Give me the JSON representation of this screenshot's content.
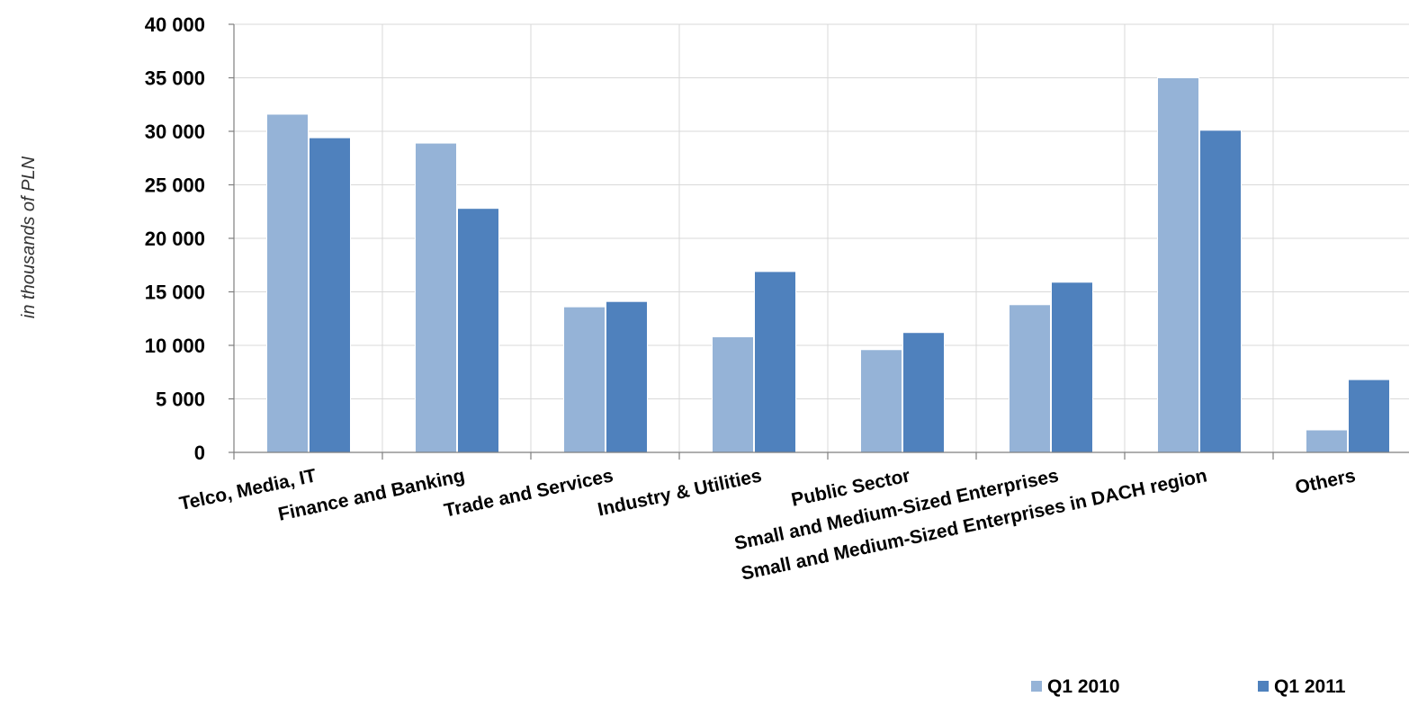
{
  "chart_data": {
    "type": "bar",
    "ylabel": "in thousands of PLN",
    "ylim": [
      0,
      40000
    ],
    "y_ticks": [
      {
        "value": 0,
        "label": "0"
      },
      {
        "value": 5000,
        "label": "5 000"
      },
      {
        "value": 10000,
        "label": "10 000"
      },
      {
        "value": 15000,
        "label": "15 000"
      },
      {
        "value": 20000,
        "label": "20 000"
      },
      {
        "value": 25000,
        "label": "25 000"
      },
      {
        "value": 30000,
        "label": "30 000"
      },
      {
        "value": 35000,
        "label": "35 000"
      },
      {
        "value": 40000,
        "label": "40 000"
      }
    ],
    "categories": [
      "Telco, Media, IT",
      "Finance and Banking",
      "Trade and Services",
      "Industry & Utilities",
      "Public Sector",
      "Small and Medium-Sized Enterprises",
      "Small and Medium-Sized Enterprises in DACH region",
      "Others"
    ],
    "series": [
      {
        "name": "Q1 2010",
        "color": "#95B3D7",
        "values": [
          31600,
          28900,
          13600,
          10800,
          9600,
          13800,
          35000,
          2100
        ]
      },
      {
        "name": "Q1 2011",
        "color": "#4F81BD",
        "values": [
          29400,
          22800,
          14100,
          16900,
          11200,
          15900,
          30100,
          6800
        ]
      }
    ],
    "grid": true,
    "legend_position": "bottom-right"
  }
}
